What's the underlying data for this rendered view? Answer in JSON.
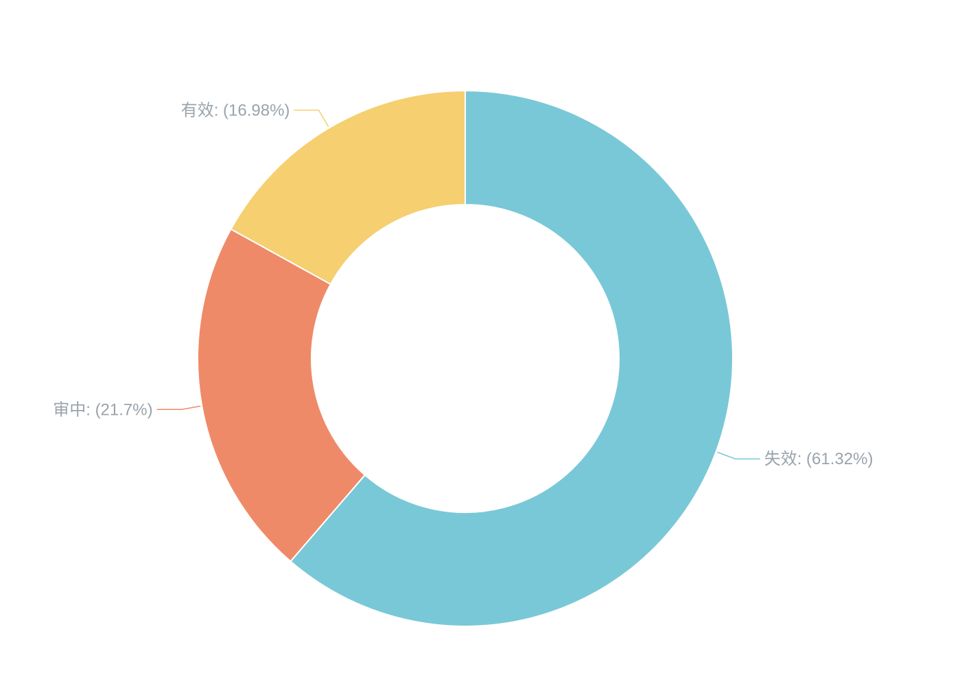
{
  "chart_data": {
    "type": "pie",
    "variant": "donut",
    "title": "",
    "legend": "none",
    "slices": [
      {
        "name": "失效",
        "value": 61.32,
        "label": "失效: (61.32%)",
        "color": "#79c8d7"
      },
      {
        "name": "审中",
        "value": 21.7,
        "label": "审中: (21.7%)",
        "color": "#ef8a68"
      },
      {
        "name": "有效",
        "value": 16.98,
        "label": "有效: (16.98%)",
        "color": "#f5cf70"
      }
    ]
  }
}
